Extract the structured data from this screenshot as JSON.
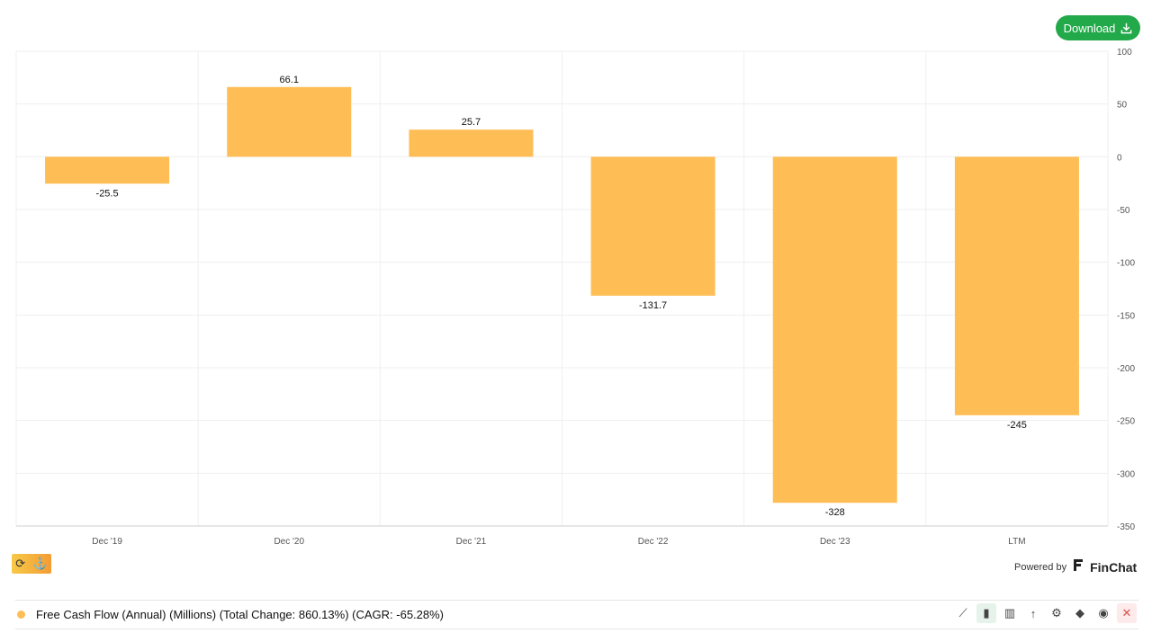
{
  "download": {
    "label": "Download"
  },
  "powered_by": {
    "text": "Powered by",
    "brand": "FinChat"
  },
  "legend": {
    "color": "#ffbe55",
    "label": "Free Cash Flow (Annual) (Millions) (Total Change: 860.13%) (CAGR: -65.28%)"
  },
  "tools": [
    {
      "name": "line-chart-icon",
      "glyph": "⟋"
    },
    {
      "name": "bar-chart-icon",
      "glyph": "▮"
    },
    {
      "name": "stacked-bar-icon",
      "glyph": "▥"
    },
    {
      "name": "sort-icon",
      "glyph": "↑"
    },
    {
      "name": "gear-icon",
      "glyph": "⚙"
    },
    {
      "name": "tag-icon",
      "glyph": "◆"
    },
    {
      "name": "eye-icon",
      "glyph": "◉"
    },
    {
      "name": "close-icon",
      "glyph": "✕"
    }
  ],
  "chart_data": {
    "type": "bar",
    "categories": [
      "Dec '19",
      "Dec '20",
      "Dec '21",
      "Dec '22",
      "Dec '23",
      "LTM"
    ],
    "values": [
      -25.5,
      66.1,
      25.7,
      -131.7,
      -328,
      -245
    ],
    "value_labels": [
      "-25.5",
      "66.1",
      "25.7",
      "-131.7",
      "-328",
      "-245"
    ],
    "yticks": [
      100,
      50,
      0,
      -50,
      -100,
      -150,
      -200,
      -250,
      -300,
      -350
    ],
    "ylim": [
      -350,
      100
    ],
    "color": "#ffbe55",
    "y_axis_side": "right",
    "grid": true
  }
}
